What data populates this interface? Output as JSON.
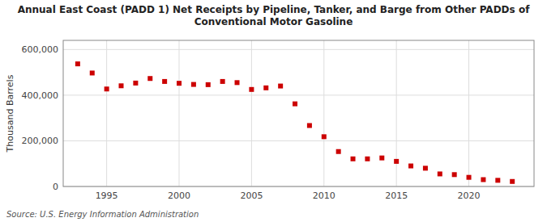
{
  "chart_data": {
    "type": "scatter",
    "title": "Annual East Coast (PADD 1) Net Receipts by Pipeline, Tanker, and Barge from Other PADDs of\nConventional Motor Gasoline",
    "ylabel": "Thousand Barrels",
    "source": "Source: U.S. Energy Information Administration",
    "color": "#cc0000",
    "marker": "square",
    "x": [
      1993,
      1994,
      1995,
      1996,
      1997,
      1998,
      1999,
      2000,
      2001,
      2002,
      2003,
      2004,
      2005,
      2006,
      2007,
      2008,
      2009,
      2010,
      2011,
      2012,
      2013,
      2014,
      2015,
      2016,
      2017,
      2018,
      2019,
      2020,
      2021,
      2022,
      2023
    ],
    "values": [
      537000,
      497000,
      427000,
      441000,
      453000,
      473000,
      460000,
      452000,
      447000,
      446000,
      460000,
      455000,
      425000,
      432000,
      440000,
      362000,
      267000,
      218000,
      153000,
      121000,
      121000,
      125000,
      110000,
      90000,
      80000,
      55000,
      52000,
      40000,
      30000,
      27000,
      22000
    ],
    "xlim": [
      1992.0,
      2024.5
    ],
    "xticks": [
      1995,
      2000,
      2005,
      2010,
      2015,
      2020
    ],
    "ylim": [
      0,
      640000
    ],
    "yticks": [
      0,
      {
        "value": 200000,
        "label": "200,000"
      },
      {
        "value": 400000,
        "label": "400,000"
      },
      {
        "value": 600000,
        "label": "600,000"
      }
    ],
    "grid": true
  }
}
